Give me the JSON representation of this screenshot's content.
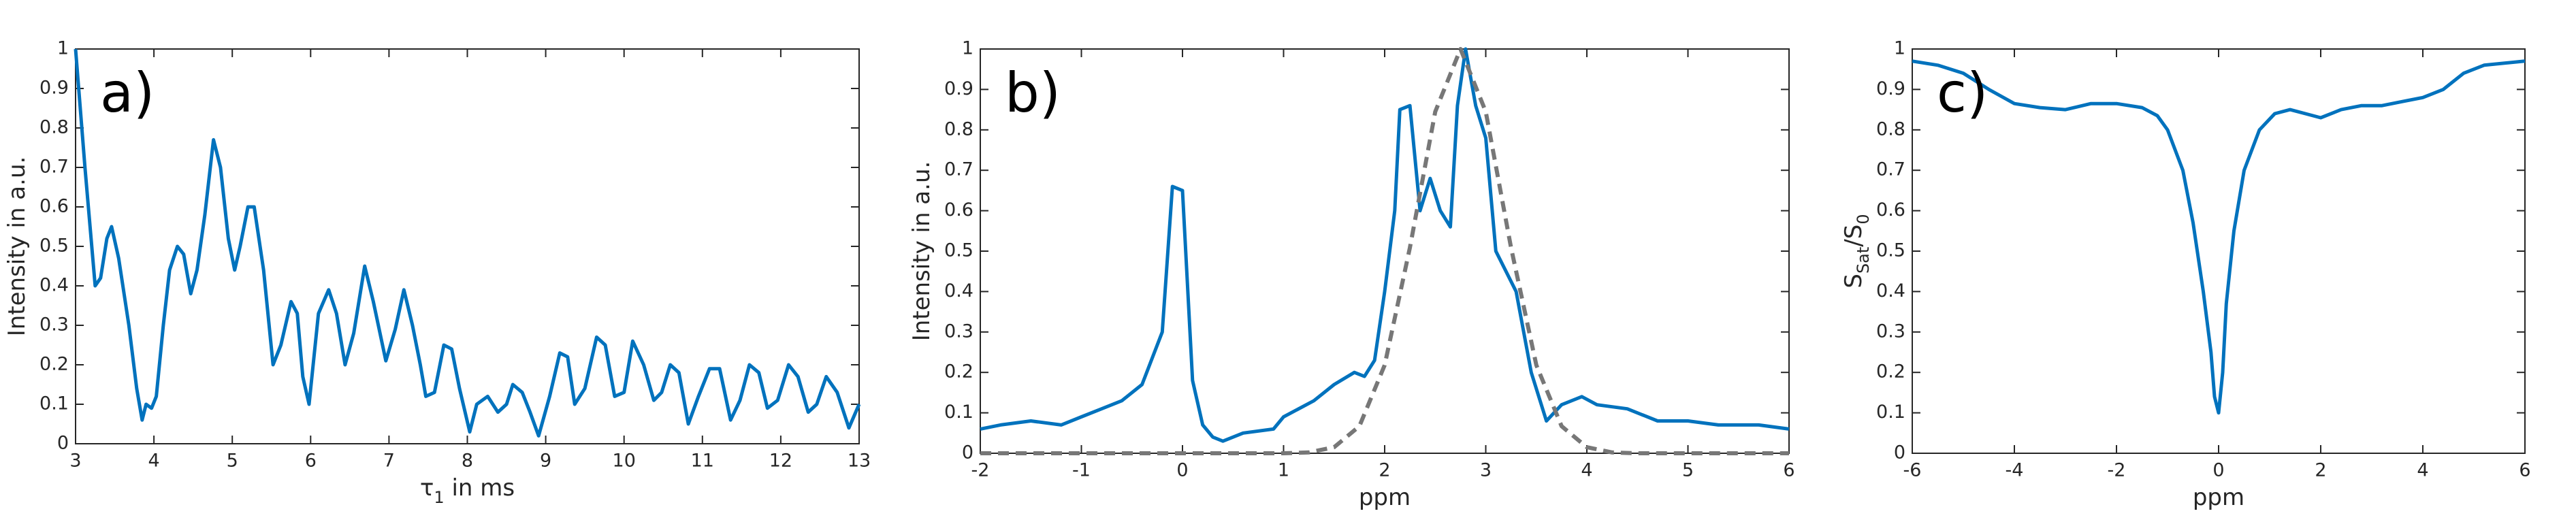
{
  "chart_data": [
    {
      "type": "line",
      "annotation": "a)",
      "xlabel": [
        "τ",
        "1",
        " in ms"
      ],
      "ylabel": [
        "Intensity in a.u."
      ],
      "xlim": [
        3,
        13
      ],
      "ylim": [
        0,
        1
      ],
      "xticks": [
        3,
        4,
        5,
        6,
        7,
        8,
        9,
        10,
        11,
        12,
        13
      ],
      "yticks": [
        0,
        0.1,
        0.2,
        0.3,
        0.4,
        0.5,
        0.6,
        0.7,
        0.8,
        0.9,
        1
      ],
      "series": [
        {
          "color": "#0072bd",
          "style": "solid",
          "x": [
            3.0,
            3.12,
            3.25,
            3.32,
            3.4,
            3.46,
            3.55,
            3.68,
            3.78,
            3.85,
            3.9,
            3.97,
            4.03,
            4.12,
            4.2,
            4.3,
            4.38,
            4.47,
            4.55,
            4.65,
            4.76,
            4.85,
            4.95,
            5.03,
            5.1,
            5.2,
            5.28,
            5.4,
            5.52,
            5.62,
            5.75,
            5.83,
            5.9,
            5.98,
            6.1,
            6.23,
            6.33,
            6.44,
            6.55,
            6.69,
            6.8,
            6.96,
            7.08,
            7.19,
            7.3,
            7.4,
            7.47,
            7.58,
            7.7,
            7.8,
            7.9,
            8.03,
            8.12,
            8.26,
            8.39,
            8.5,
            8.58,
            8.7,
            8.8,
            8.91,
            9.05,
            9.18,
            9.28,
            9.37,
            9.5,
            9.65,
            9.76,
            9.88,
            10.0,
            10.11,
            10.25,
            10.38,
            10.48,
            10.59,
            10.7,
            10.82,
            10.95,
            11.09,
            11.22,
            11.36,
            11.48,
            11.6,
            11.72,
            11.83,
            11.96,
            12.1,
            12.22,
            12.35,
            12.46,
            12.58,
            12.72,
            12.87,
            13.0
          ],
          "values": [
            1.0,
            0.7,
            0.4,
            0.42,
            0.52,
            0.55,
            0.47,
            0.3,
            0.14,
            0.06,
            0.1,
            0.09,
            0.12,
            0.3,
            0.44,
            0.5,
            0.48,
            0.38,
            0.44,
            0.58,
            0.77,
            0.7,
            0.52,
            0.44,
            0.5,
            0.6,
            0.6,
            0.44,
            0.2,
            0.25,
            0.36,
            0.33,
            0.17,
            0.1,
            0.33,
            0.39,
            0.33,
            0.2,
            0.28,
            0.45,
            0.36,
            0.21,
            0.29,
            0.39,
            0.3,
            0.2,
            0.12,
            0.13,
            0.25,
            0.24,
            0.14,
            0.03,
            0.1,
            0.12,
            0.08,
            0.1,
            0.15,
            0.13,
            0.08,
            0.02,
            0.12,
            0.23,
            0.22,
            0.1,
            0.14,
            0.27,
            0.25,
            0.12,
            0.13,
            0.26,
            0.2,
            0.11,
            0.13,
            0.2,
            0.18,
            0.05,
            0.12,
            0.19,
            0.19,
            0.06,
            0.11,
            0.2,
            0.18,
            0.09,
            0.11,
            0.2,
            0.17,
            0.08,
            0.1,
            0.17,
            0.13,
            0.04,
            0.1
          ]
        }
      ]
    },
    {
      "type": "line",
      "annotation": "b)",
      "xlabel": [
        "ppm"
      ],
      "ylabel": [
        "Intensity in a.u."
      ],
      "xlim": [
        -2,
        6
      ],
      "ylim": [
        0,
        1
      ],
      "xticks": [
        -2,
        -1,
        0,
        1,
        2,
        3,
        4,
        5,
        6
      ],
      "yticks": [
        0,
        0.1,
        0.2,
        0.3,
        0.4,
        0.5,
        0.6,
        0.7,
        0.8,
        0.9,
        1
      ],
      "series": [
        {
          "color": "#0072bd",
          "style": "solid",
          "x": [
            -2,
            -1.8,
            -1.5,
            -1.2,
            -1,
            -0.8,
            -0.6,
            -0.4,
            -0.2,
            -0.1,
            0,
            0.1,
            0.2,
            0.3,
            0.4,
            0.6,
            0.9,
            1.0,
            1.3,
            1.5,
            1.7,
            1.8,
            1.9,
            2.0,
            2.1,
            2.15,
            2.25,
            2.35,
            2.45,
            2.55,
            2.65,
            2.72,
            2.8,
            2.9,
            3.0,
            3.1,
            3.3,
            3.45,
            3.6,
            3.75,
            3.95,
            4.1,
            4.4,
            4.7,
            5.0,
            5.3,
            5.7,
            6.0
          ],
          "values": [
            0.06,
            0.07,
            0.08,
            0.07,
            0.09,
            0.11,
            0.13,
            0.17,
            0.3,
            0.66,
            0.65,
            0.18,
            0.07,
            0.04,
            0.03,
            0.05,
            0.06,
            0.09,
            0.13,
            0.17,
            0.2,
            0.19,
            0.23,
            0.4,
            0.6,
            0.85,
            0.86,
            0.6,
            0.68,
            0.6,
            0.56,
            0.86,
            1.0,
            0.86,
            0.78,
            0.5,
            0.4,
            0.2,
            0.08,
            0.12,
            0.14,
            0.12,
            0.11,
            0.08,
            0.08,
            0.07,
            0.07,
            0.06
          ]
        },
        {
          "color": "#777777",
          "style": "dashed",
          "x": [
            -2,
            0,
            1,
            1.25,
            1.5,
            1.75,
            2,
            2.25,
            2.5,
            2.75,
            3,
            3.25,
            3.5,
            3.75,
            4,
            4.25,
            4.5,
            5,
            6
          ],
          "values": [
            0,
            0,
            0,
            0.002,
            0.015,
            0.067,
            0.218,
            0.509,
            0.845,
            1,
            0.845,
            0.509,
            0.218,
            0.067,
            0.015,
            0.002,
            0,
            0,
            0
          ]
        }
      ]
    },
    {
      "type": "line",
      "annotation": "c)",
      "xlabel": [
        "ppm"
      ],
      "ylabel": [
        "S",
        "Sat",
        "/S",
        "0"
      ],
      "xlim": [
        -6,
        6
      ],
      "ylim": [
        0,
        1
      ],
      "xticks": [
        -6,
        -4,
        -2,
        0,
        2,
        4,
        6
      ],
      "yticks": [
        0,
        0.1,
        0.2,
        0.3,
        0.4,
        0.5,
        0.6,
        0.7,
        0.8,
        0.9,
        1
      ],
      "series": [
        {
          "color": "#0072bd",
          "style": "solid",
          "x": [
            -6,
            -5.5,
            -5,
            -4.5,
            -4,
            -3.5,
            -3,
            -2.5,
            -2,
            -1.5,
            -1.2,
            -1,
            -0.7,
            -0.5,
            -0.3,
            -0.15,
            -0.08,
            0,
            0.08,
            0.15,
            0.3,
            0.5,
            0.8,
            1.1,
            1.4,
            1.7,
            2,
            2.4,
            2.8,
            3.2,
            3.6,
            4,
            4.4,
            4.8,
            5.2,
            6
          ],
          "values": [
            0.97,
            0.96,
            0.94,
            0.9,
            0.865,
            0.855,
            0.85,
            0.865,
            0.865,
            0.855,
            0.835,
            0.8,
            0.7,
            0.57,
            0.4,
            0.25,
            0.14,
            0.1,
            0.2,
            0.37,
            0.55,
            0.7,
            0.8,
            0.84,
            0.85,
            0.84,
            0.83,
            0.85,
            0.86,
            0.86,
            0.87,
            0.88,
            0.9,
            0.94,
            0.96,
            0.97
          ]
        }
      ]
    }
  ]
}
